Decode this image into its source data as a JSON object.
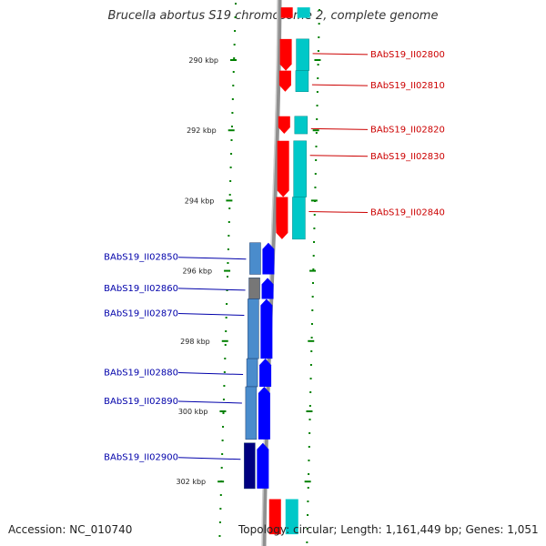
{
  "title": "Brucella abortus S19 chromosome 2, complete genome",
  "accession": "Accession: NC_010740",
  "genome_info": "Topology: circular; Length: 1,161,449 bp; Genes: 1,051",
  "colors": {
    "forward_gene": "#ff0000",
    "forward_cds": "#00c8c8",
    "reverse_gene": "#0000ff",
    "reverse_cds_light": "#4a8ccc",
    "reverse_cds_dark": "#000080",
    "reverse_cds_grey": "#777777",
    "backbone": "#888888",
    "scale_tick": "#008000",
    "forward_label": "#cc0000",
    "reverse_label": "#0000aa"
  },
  "scale": {
    "start_kbp": 288.5,
    "end_kbp": 303.5,
    "tick_labels_kbp": [
      290,
      292,
      294,
      296,
      298,
      300,
      302
    ],
    "tick_suffix": " kbp"
  },
  "forward_genes": [
    {
      "locus": "BAbS19_II02800",
      "start_kbp": 289.4,
      "end_kbp": 290.3
    },
    {
      "locus": "BAbS19_II02810",
      "start_kbp": 290.3,
      "end_kbp": 290.9
    },
    {
      "locus": "BAbS19_II02820",
      "start_kbp": 291.6,
      "end_kbp": 292.1
    },
    {
      "locus": "BAbS19_II02830",
      "start_kbp": 292.3,
      "end_kbp": 293.9
    },
    {
      "locus": "BAbS19_II02840",
      "start_kbp": 293.9,
      "end_kbp": 295.1
    }
  ],
  "forward_partial": [
    {
      "start_kbp": 288.5,
      "end_kbp": 288.8
    },
    {
      "start_kbp": 302.5,
      "end_kbp": 303.5
    }
  ],
  "reverse_genes": [
    {
      "locus": "BAbS19_II02850",
      "start_kbp": 295.2,
      "end_kbp": 296.1,
      "shade": "light"
    },
    {
      "locus": "BAbS19_II02860",
      "start_kbp": 296.2,
      "end_kbp": 296.8,
      "shade": "grey"
    },
    {
      "locus": "BAbS19_II02870",
      "start_kbp": 296.8,
      "end_kbp": 298.5,
      "shade": "light"
    },
    {
      "locus": "BAbS19_II02880",
      "start_kbp": 298.5,
      "end_kbp": 299.3,
      "shade": "light"
    },
    {
      "locus": "BAbS19_II02890",
      "start_kbp": 299.3,
      "end_kbp": 300.8,
      "shade": "light"
    },
    {
      "locus": "BAbS19_II02900",
      "start_kbp": 300.9,
      "end_kbp": 302.2,
      "shade": "dark"
    }
  ]
}
